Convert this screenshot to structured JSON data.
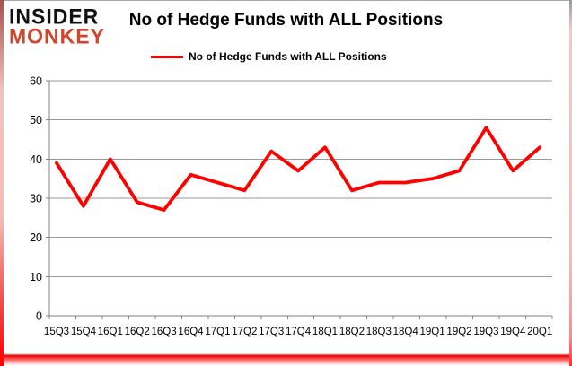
{
  "logo": {
    "line1": "INSIDER",
    "line2": "MONKEY"
  },
  "header": {
    "title": "No of Hedge Funds with ALL Positions"
  },
  "legend": {
    "label": "No of Hedge Funds with ALL Positions",
    "line_color": "#ff0000"
  },
  "chart_data": {
    "type": "line",
    "title": "No of Hedge Funds with ALL Positions",
    "categories": [
      "15Q3",
      "15Q4",
      "16Q1",
      "16Q2",
      "16Q3",
      "16Q4",
      "17Q1",
      "17Q2",
      "17Q3",
      "17Q4",
      "18Q1",
      "18Q2",
      "18Q3",
      "18Q4",
      "19Q1",
      "19Q2",
      "19Q3",
      "19Q4",
      "20Q1"
    ],
    "series": [
      {
        "name": "No of Hedge Funds with ALL Positions",
        "color": "#ff0000",
        "values": [
          39,
          28,
          40,
          29,
          27,
          36,
          34,
          32,
          42,
          37,
          43,
          32,
          34,
          34,
          35,
          37,
          48,
          37,
          43
        ]
      }
    ],
    "xlabel": "",
    "ylabel": "",
    "ylim": [
      0,
      60
    ],
    "ytick_step": 10,
    "grid": true,
    "legend_position": "top",
    "grid_color": "#999999",
    "axis_color": "#808080",
    "label_color": "#000000"
  }
}
